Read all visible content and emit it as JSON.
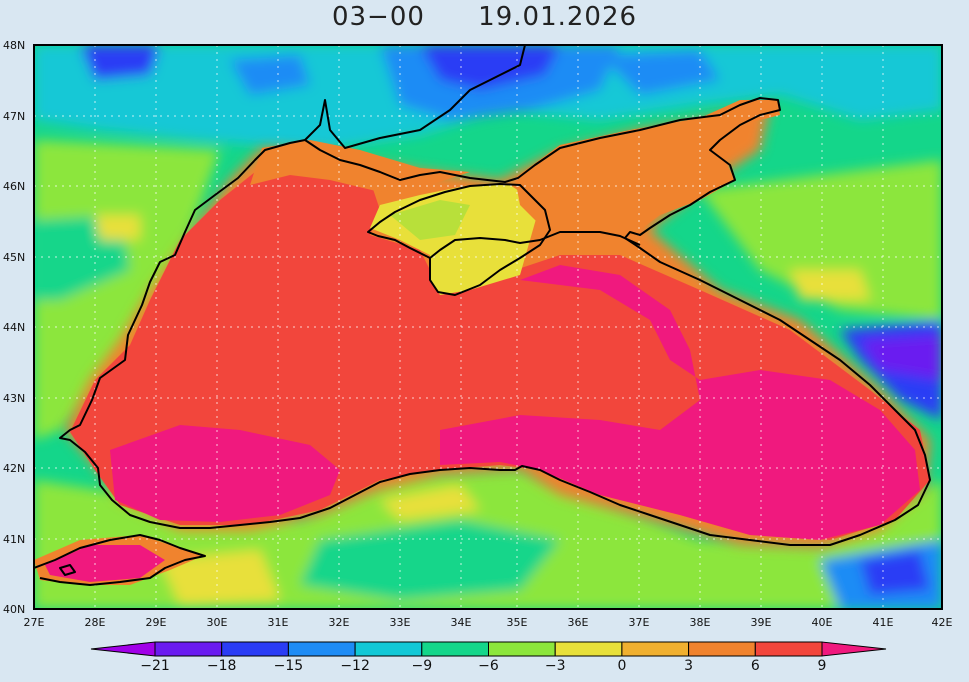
{
  "header": {
    "time": "03−00",
    "date": "19.01.2026"
  },
  "axes": {
    "lat_labels": [
      "40N",
      "41N",
      "42N",
      "43N",
      "44N",
      "45N",
      "46N",
      "47N",
      "48N"
    ],
    "lon_labels": [
      "27E",
      "28E",
      "29E",
      "30E",
      "31E",
      "32E",
      "33E",
      "34E",
      "35E",
      "36E",
      "37E",
      "38E",
      "39E",
      "40E",
      "41E",
      "42E"
    ],
    "lat_range": [
      40,
      48
    ],
    "lon_range": [
      27,
      42
    ],
    "grid": "dotted"
  },
  "colorbar": {
    "labels": [
      "−21",
      "−18",
      "−15",
      "−12",
      "−9",
      "−6",
      "−3",
      "0",
      "3",
      "6",
      "9"
    ],
    "colors": [
      "#a100e8",
      "#6a1bf0",
      "#2a3cf5",
      "#1e8cf5",
      "#12c8d6",
      "#14d68a",
      "#8ce63c",
      "#e8e03a",
      "#f0b030",
      "#f0832e",
      "#f2463c",
      "#f0197e"
    ]
  }
}
